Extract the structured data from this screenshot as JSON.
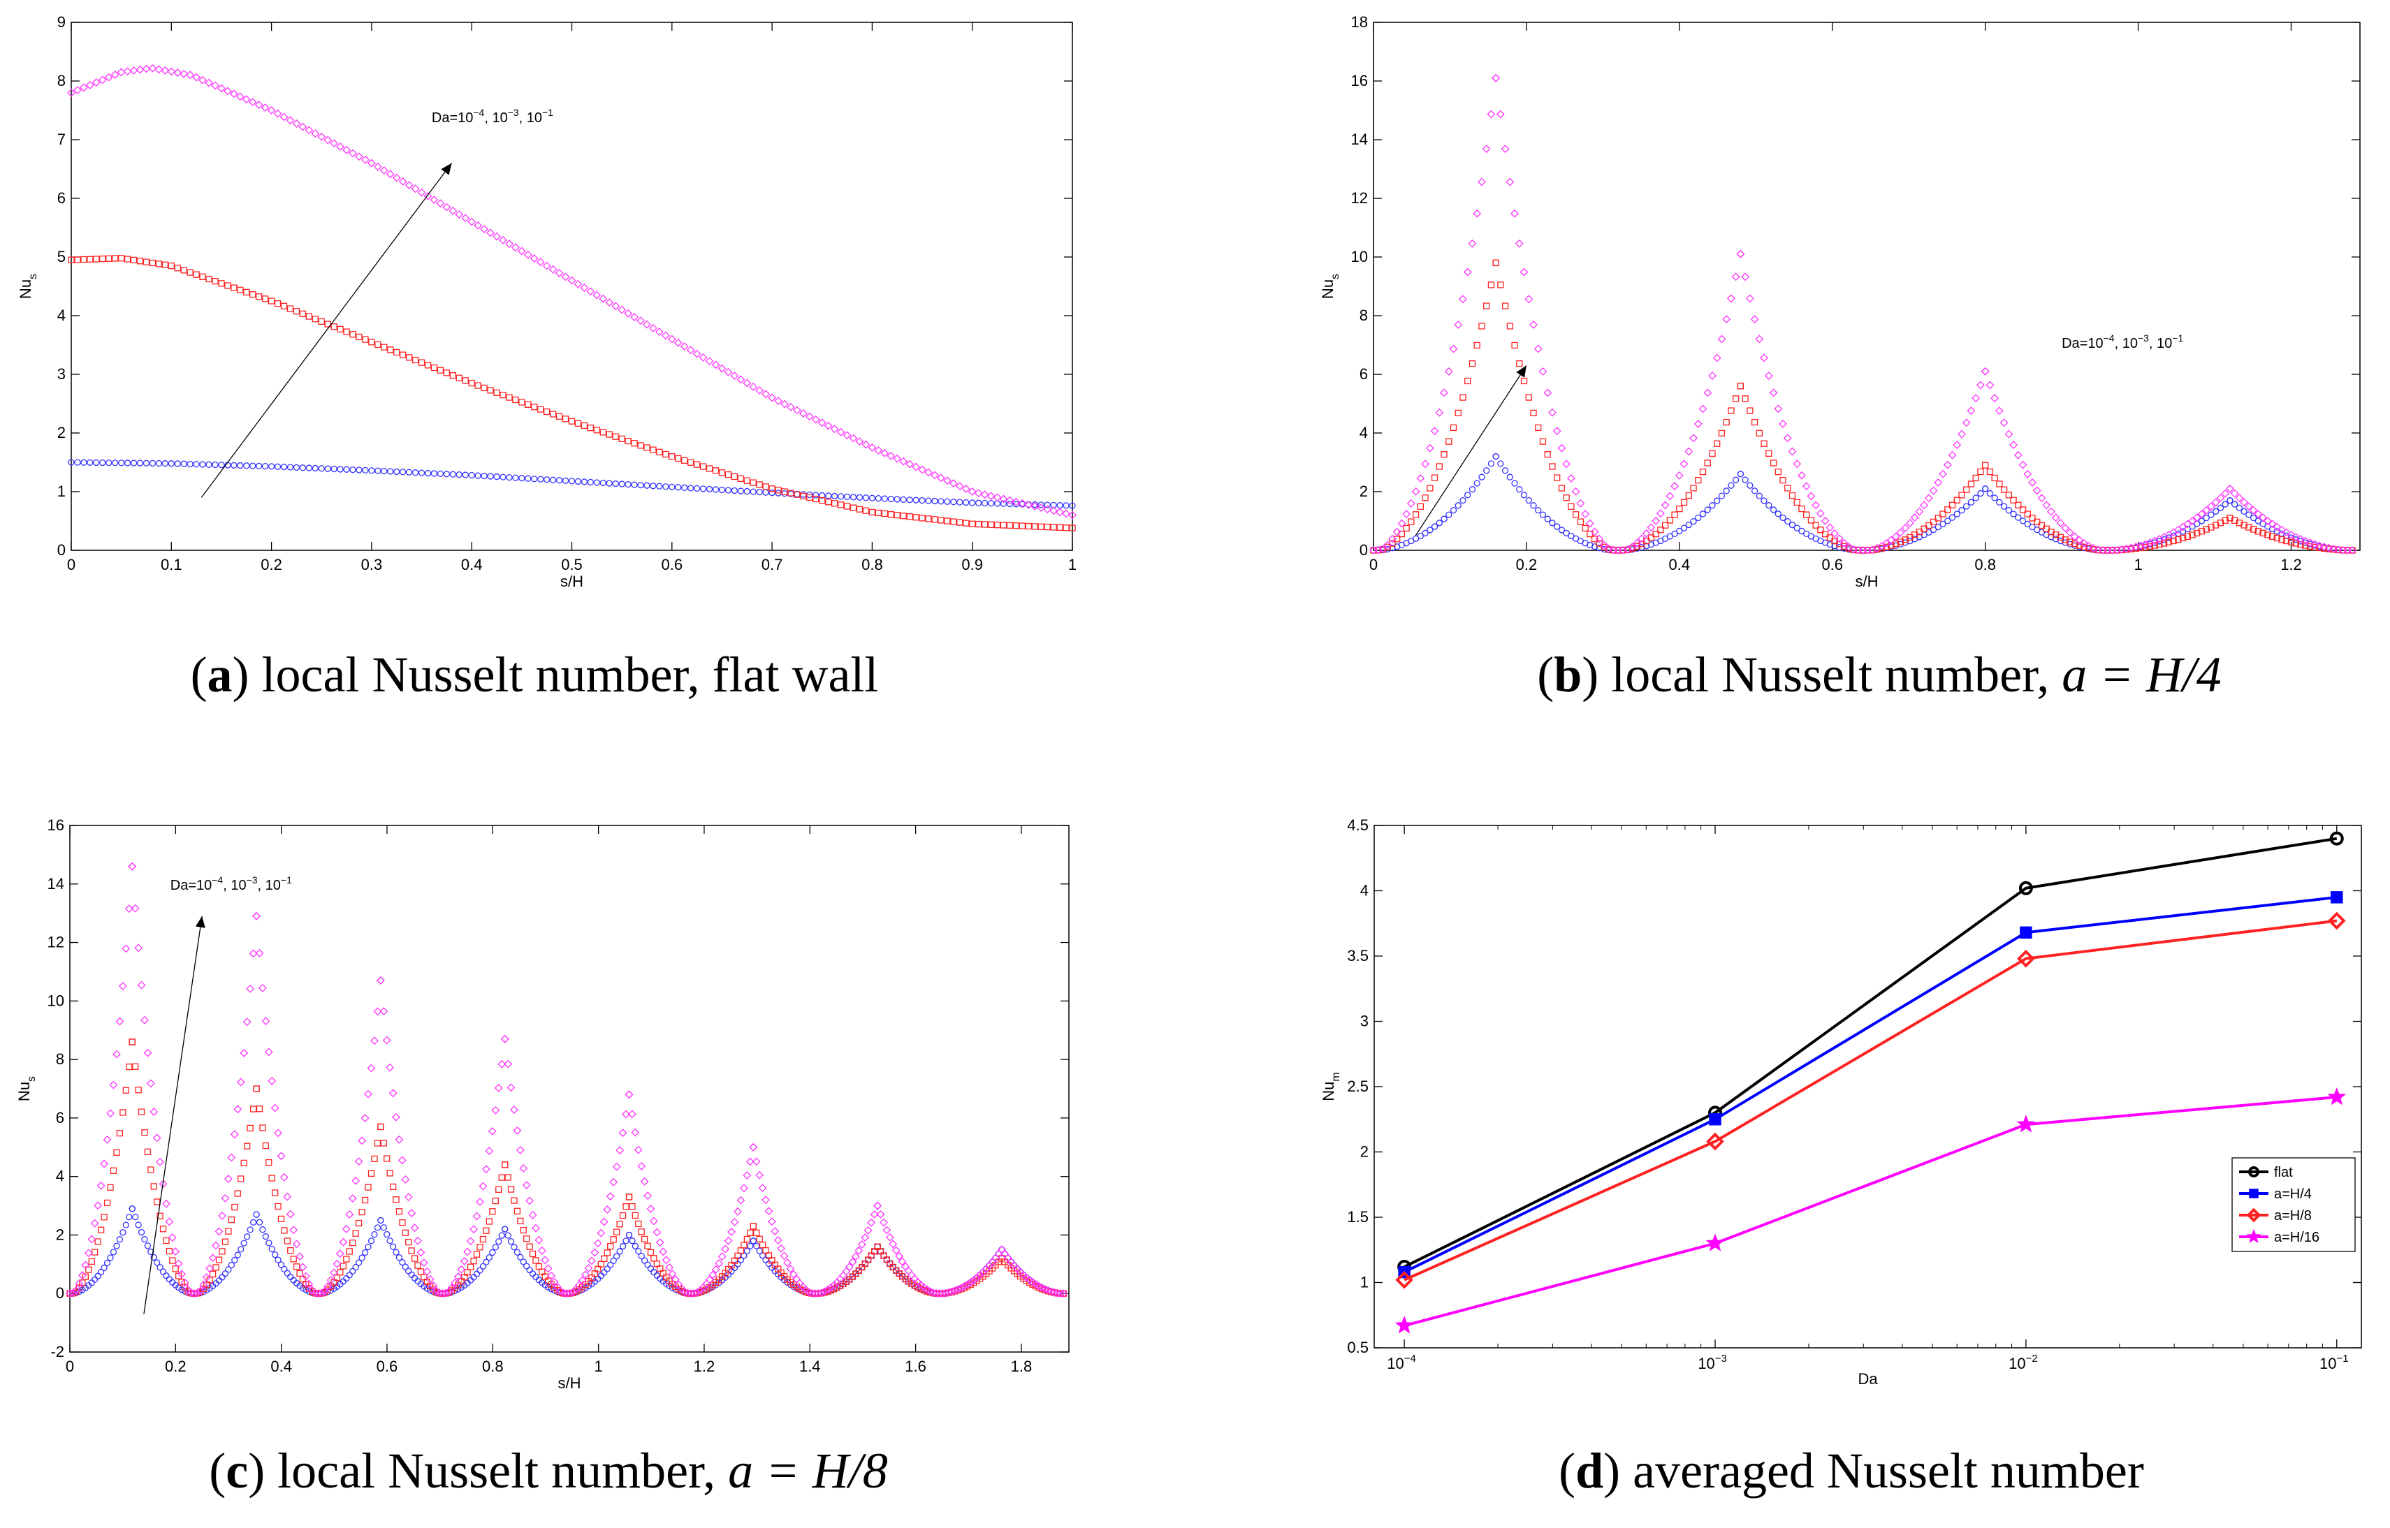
{
  "colors": {
    "blue": "#3333ff",
    "red": "#ff2222",
    "magenta": "#ff33ff",
    "black": "#000000",
    "blue_d": "#0000ff",
    "magenta_d": "#ff00ff"
  },
  "captions": {
    "a": {
      "letter": "a",
      "text": " local Nusselt number, flat wall",
      "math": ""
    },
    "b": {
      "letter": "b",
      "text": " local Nusselt number, ",
      "math": "a = H/4"
    },
    "c": {
      "letter": "c",
      "text": " local Nusselt number, ",
      "math": "a = H/8"
    },
    "d": {
      "letter": "d",
      "text": " averaged Nusselt number",
      "math": ""
    }
  },
  "chart_data": [
    {
      "id": "a",
      "type": "scatter",
      "title": "",
      "xlabel": "s/H",
      "ylabel": "Nu",
      "ylabel_sub": "s",
      "xlim": [
        0,
        1
      ],
      "ylim": [
        0,
        9
      ],
      "xticks": [
        0,
        0.1,
        0.2,
        0.3,
        0.4,
        0.5,
        0.6,
        0.7,
        0.8,
        0.9,
        1
      ],
      "yticks": [
        0,
        1,
        2,
        3,
        4,
        5,
        6,
        7,
        8,
        9
      ],
      "annotation": {
        "parts": [
          "Da=10",
          "−4",
          ", 10",
          "−3",
          ", 10",
          "−1"
        ],
        "text_at": [
          0.36,
          7.3
        ],
        "arrow_from": [
          0.13,
          0.9
        ],
        "arrow_to": [
          0.38,
          6.6
        ]
      },
      "series": [
        {
          "name": "Da=1e-4",
          "color": "blue",
          "marker": "circle",
          "points": [
            [
              0,
              1.5
            ],
            [
              0.1,
              1.48
            ],
            [
              0.2,
              1.43
            ],
            [
              0.3,
              1.36
            ],
            [
              0.4,
              1.28
            ],
            [
              0.5,
              1.18
            ],
            [
              0.6,
              1.08
            ],
            [
              0.7,
              0.98
            ],
            [
              0.8,
              0.89
            ],
            [
              0.9,
              0.81
            ],
            [
              1,
              0.76
            ]
          ]
        },
        {
          "name": "Da=1e-3",
          "color": "red",
          "marker": "square",
          "points": [
            [
              0,
              4.95
            ],
            [
              0.05,
              4.98
            ],
            [
              0.1,
              4.85
            ],
            [
              0.2,
              4.25
            ],
            [
              0.3,
              3.55
            ],
            [
              0.4,
              2.85
            ],
            [
              0.5,
              2.2
            ],
            [
              0.6,
              1.6
            ],
            [
              0.7,
              1.05
            ],
            [
              0.8,
              0.65
            ],
            [
              0.9,
              0.45
            ],
            [
              1,
              0.38
            ]
          ]
        },
        {
          "name": "Da=1e-1",
          "color": "magenta",
          "marker": "diamond",
          "points": [
            [
              0,
              7.8
            ],
            [
              0.05,
              8.15
            ],
            [
              0.08,
              8.22
            ],
            [
              0.12,
              8.1
            ],
            [
              0.2,
              7.5
            ],
            [
              0.3,
              6.6
            ],
            [
              0.4,
              5.6
            ],
            [
              0.5,
              4.6
            ],
            [
              0.6,
              3.6
            ],
            [
              0.7,
              2.6
            ],
            [
              0.8,
              1.75
            ],
            [
              0.9,
              1.0
            ],
            [
              1,
              0.6
            ]
          ]
        }
      ]
    },
    {
      "id": "b",
      "type": "scatter",
      "title": "",
      "xlabel": "s/H",
      "ylabel": "Nu",
      "ylabel_sub": "s",
      "xlim": [
        0,
        1.29
      ],
      "ylim": [
        0,
        18
      ],
      "xticks": [
        0,
        0.2,
        0.4,
        0.6,
        0.8,
        1,
        1.2
      ],
      "yticks": [
        0,
        2,
        4,
        6,
        8,
        10,
        12,
        14,
        16,
        18
      ],
      "annotation": {
        "parts": [
          "Da=10",
          "−4",
          ", 10",
          "−3",
          ", 10",
          "−1"
        ],
        "text_at": [
          0.9,
          6.9
        ],
        "arrow_from": [
          0.055,
          0.5
        ],
        "arrow_to": [
          0.2,
          6.3
        ]
      },
      "period": 0.32,
      "peak_offset": 0.16,
      "series": [
        {
          "name": "Da=1e-4",
          "color": "blue",
          "marker": "circle",
          "peaks": [
            3.2,
            2.6,
            2.1,
            1.7
          ]
        },
        {
          "name": "Da=1e-3",
          "color": "red",
          "marker": "square",
          "peaks": [
            9.8,
            5.6,
            2.9,
            1.1
          ]
        },
        {
          "name": "Da=1e-1",
          "color": "magenta",
          "marker": "diamond",
          "peaks": [
            16.1,
            10.1,
            6.1,
            2.1
          ]
        }
      ]
    },
    {
      "id": "c",
      "type": "scatter",
      "title": "",
      "xlabel": "s/H",
      "ylabel": "Nu",
      "ylabel_sub": "s",
      "xlim": [
        0,
        1.89
      ],
      "ylim": [
        -2,
        16
      ],
      "xticks": [
        0,
        0.2,
        0.4,
        0.6,
        0.8,
        1,
        1.2,
        1.4,
        1.6,
        1.8
      ],
      "yticks": [
        -2,
        0,
        2,
        4,
        6,
        8,
        10,
        12,
        14,
        16
      ],
      "annotation": {
        "parts": [
          "Da=10",
          "−4",
          ", 10",
          "−3",
          ", 10",
          "−1"
        ],
        "text_at": [
          0.19,
          13.8
        ],
        "arrow_from": [
          0.14,
          -0.7
        ],
        "arrow_to": [
          0.25,
          12.9
        ]
      },
      "period": 0.235,
      "peak_offset": 0.118,
      "series": [
        {
          "name": "Da=1e-4",
          "color": "blue",
          "marker": "circle",
          "peaks": [
            2.9,
            2.7,
            2.5,
            2.2,
            2.0,
            1.8,
            1.6,
            1.5
          ]
        },
        {
          "name": "Da=1e-3",
          "color": "red",
          "marker": "square",
          "peaks": [
            8.6,
            7.0,
            5.7,
            4.4,
            3.3,
            2.3,
            1.6,
            1.2
          ]
        },
        {
          "name": "Da=1e-1",
          "color": "magenta",
          "marker": "diamond",
          "peaks": [
            14.6,
            12.9,
            10.7,
            8.7,
            6.8,
            5.0,
            3.0,
            1.5
          ]
        }
      ]
    },
    {
      "id": "d",
      "type": "line",
      "title": "",
      "xlabel": "Da",
      "ylabel": "Nu",
      "ylabel_sub": "m",
      "xscale": "log",
      "xlim": [
        8e-05,
        0.12
      ],
      "ylim": [
        0.5,
        4.5
      ],
      "x": [
        0.0001,
        0.001,
        0.01,
        0.1
      ],
      "xtick_labels": [
        {
          "value": 0.0001,
          "base": "10",
          "exp": "−4"
        },
        {
          "value": 0.001,
          "base": "10",
          "exp": "−3"
        },
        {
          "value": 0.01,
          "base": "10",
          "exp": "−2"
        },
        {
          "value": 0.1,
          "base": "10",
          "exp": "−1"
        }
      ],
      "yticks": [
        0.5,
        1,
        1.5,
        2,
        2.5,
        3,
        3.5,
        4,
        4.5
      ],
      "legend_position": "right",
      "series": [
        {
          "name": "flat",
          "color": "black",
          "marker": "circle",
          "values": [
            1.12,
            2.3,
            4.02,
            4.4
          ]
        },
        {
          "name": "a=H/4",
          "color": "blue_d",
          "marker": "square",
          "values": [
            1.08,
            2.25,
            3.68,
            3.95
          ]
        },
        {
          "name": "a=H/8",
          "color": "red",
          "marker": "diamond",
          "values": [
            1.02,
            2.08,
            3.48,
            3.77
          ]
        },
        {
          "name": "a=H/16",
          "color": "magenta_d",
          "marker": "star",
          "values": [
            0.67,
            1.3,
            2.21,
            2.42
          ]
        }
      ]
    }
  ]
}
